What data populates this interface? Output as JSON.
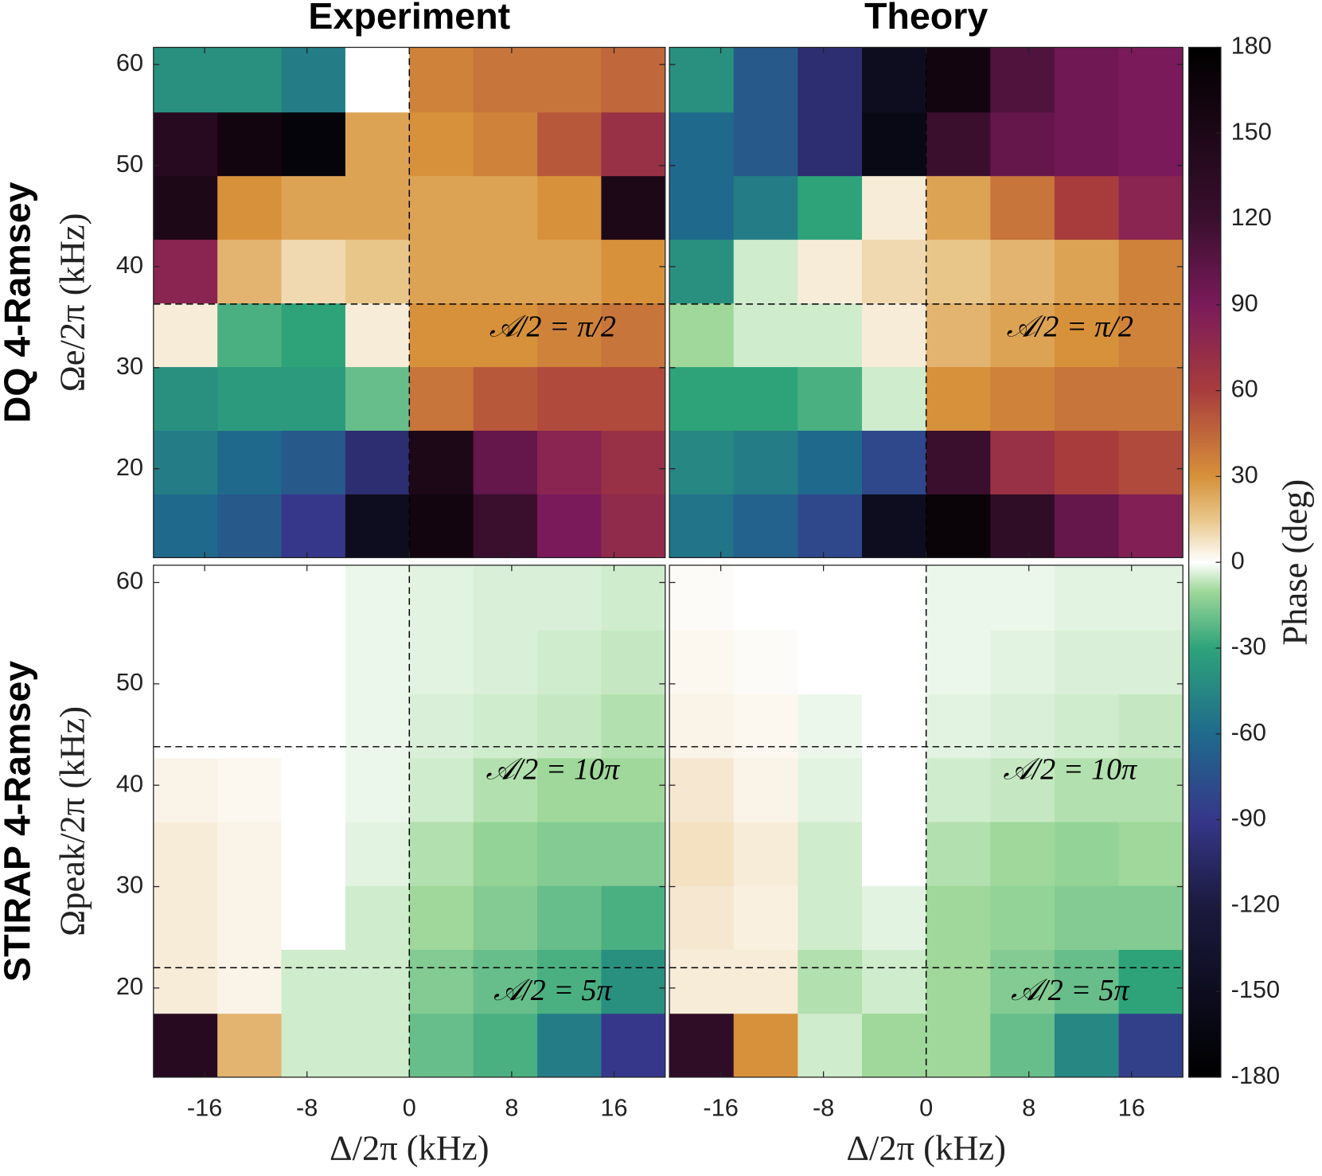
{
  "chart_data": [
    {
      "type": "heatmap",
      "title": "Experiment",
      "row_label": "DQ 4-Ramsey",
      "ylabel": "Ωe/2π (kHz)",
      "xbins": [
        -20,
        -15,
        -10,
        -5,
        0,
        5,
        10,
        15,
        20
      ],
      "ybins": [
        11.2,
        17.5,
        23.8,
        30.1,
        36.4,
        42.7,
        49,
        55.3,
        61.7
      ],
      "xlim": [
        -20,
        20
      ],
      "ylim": [
        11.2,
        61.7
      ],
      "xticks": [
        -16,
        -8,
        0,
        8,
        16
      ],
      "yticks": [
        20,
        30,
        40,
        50,
        60
      ],
      "vlines": [
        0
      ],
      "hlines": [
        {
          "value": 36.3,
          "label": "𝒜/2 = π/2"
        }
      ],
      "z": [
        [
          -60,
          -70,
          -90,
          -150,
          160,
          120,
          90,
          75
        ],
        [
          -50,
          -60,
          -70,
          -100,
          150,
          100,
          80,
          70
        ],
        [
          -40,
          -35,
          -35,
          -20,
          40,
          50,
          55,
          55
        ],
        [
          5,
          -25,
          -30,
          5,
          30,
          30,
          35,
          40
        ],
        [
          80,
          20,
          10,
          15,
          25,
          25,
          25,
          30
        ],
        [
          150,
          30,
          25,
          25,
          25,
          25,
          30,
          150
        ],
        [
          140,
          160,
          -170,
          25,
          30,
          35,
          50,
          70
        ],
        [
          -40,
          -40,
          -50,
          0,
          35,
          40,
          40,
          45
        ]
      ]
    },
    {
      "type": "heatmap",
      "title": "Theory",
      "xbins": [
        -20,
        -15,
        -10,
        -5,
        0,
        5,
        10,
        15,
        20
      ],
      "ybins": [
        11.2,
        17.5,
        23.8,
        30.1,
        36.4,
        42.7,
        49,
        55.3,
        61.7
      ],
      "xlim": [
        -20,
        20
      ],
      "ylim": [
        11.2,
        61.7
      ],
      "xticks": [
        -16,
        -8,
        0,
        8,
        16
      ],
      "yticks": [
        20,
        30,
        40,
        50,
        60
      ],
      "vlines": [
        0
      ],
      "hlines": [
        {
          "value": 36.3,
          "label": "𝒜/2 = π/2"
        }
      ],
      "z": [
        [
          -55,
          -65,
          -80,
          -150,
          170,
          130,
          100,
          85
        ],
        [
          -45,
          -50,
          -60,
          -80,
          120,
          70,
          60,
          55
        ],
        [
          -30,
          -30,
          -25,
          -5,
          30,
          35,
          40,
          40
        ],
        [
          -10,
          -5,
          -5,
          5,
          20,
          25,
          30,
          35
        ],
        [
          -40,
          -5,
          5,
          10,
          15,
          20,
          25,
          35
        ],
        [
          -60,
          -50,
          -30,
          5,
          25,
          40,
          60,
          80
        ],
        [
          -60,
          -70,
          -100,
          -160,
          120,
          100,
          95,
          90
        ],
        [
          -40,
          -70,
          -100,
          -150,
          160,
          110,
          95,
          90
        ]
      ]
    },
    {
      "type": "heatmap",
      "row_label": "STIRAP 4-Ramsey",
      "ylabel": "Ωpeak/2π (kHz)",
      "xlabel": "Δ/2π (kHz)",
      "xbins": [
        -20,
        -15,
        -10,
        -5,
        0,
        5,
        10,
        15,
        20
      ],
      "ybins": [
        11.2,
        17.5,
        23.8,
        30.1,
        36.4,
        42.7,
        49,
        55.3,
        61.7
      ],
      "xlim": [
        -20,
        20
      ],
      "ylim": [
        11.2,
        61.7
      ],
      "xticks": [
        -16,
        -8,
        0,
        8,
        16
      ],
      "yticks": [
        20,
        30,
        40,
        50,
        60
      ],
      "vlines": [
        0
      ],
      "hlines": [
        {
          "value": 43.8,
          "label": "𝒜/2 = 10π"
        },
        {
          "value": 22.0,
          "label": "𝒜/2 = 5π"
        }
      ],
      "z": [
        [
          140,
          20,
          -5,
          -5,
          -20,
          -25,
          -50,
          -90
        ],
        [
          5,
          3,
          -5,
          -5,
          -15,
          -20,
          -25,
          -40
        ],
        [
          5,
          3,
          0,
          -5,
          -10,
          -15,
          -20,
          -25
        ],
        [
          5,
          3,
          0,
          -3,
          -8,
          -12,
          -15,
          -15
        ],
        [
          3,
          2,
          0,
          -2,
          -5,
          -8,
          -10,
          -10
        ],
        [
          0,
          0,
          0,
          -2,
          -4,
          -5,
          -6,
          -8
        ],
        [
          0,
          0,
          0,
          -2,
          -3,
          -4,
          -5,
          -6
        ],
        [
          0,
          0,
          0,
          -2,
          -3,
          -4,
          -4,
          -5
        ]
      ]
    },
    {
      "type": "heatmap",
      "xlabel": "Δ/2π (kHz)",
      "xbins": [
        -20,
        -15,
        -10,
        -5,
        0,
        5,
        10,
        15,
        20
      ],
      "ybins": [
        11.2,
        17.5,
        23.8,
        30.1,
        36.4,
        42.7,
        49,
        55.3,
        61.7
      ],
      "xlim": [
        -20,
        20
      ],
      "ylim": [
        11.2,
        61.7
      ],
      "xticks": [
        -16,
        -8,
        0,
        8,
        16
      ],
      "yticks": [
        20,
        30,
        40,
        50,
        60
      ],
      "vlines": [
        0
      ],
      "hlines": [
        {
          "value": 43.8,
          "label": "𝒜/2 = 10π"
        },
        {
          "value": 22.0,
          "label": "𝒜/2 = 5π"
        }
      ],
      "z": [
        [
          130,
          30,
          -5,
          -10,
          -10,
          -20,
          -45,
          -85
        ],
        [
          5,
          5,
          -8,
          -5,
          -10,
          -15,
          -20,
          -30
        ],
        [
          6,
          4,
          -5,
          -3,
          -10,
          -12,
          -15,
          -15
        ],
        [
          8,
          5,
          -5,
          0,
          -8,
          -10,
          -12,
          -10
        ],
        [
          6,
          3,
          -3,
          0,
          -5,
          -6,
          -8,
          -8
        ],
        [
          3,
          2,
          -2,
          0,
          -3,
          -4,
          -5,
          -6
        ],
        [
          2,
          1,
          0,
          0,
          -2,
          -3,
          -4,
          -4
        ],
        [
          1,
          0,
          0,
          0,
          -2,
          -2,
          -3,
          -3
        ]
      ]
    }
  ],
  "colorbar": {
    "label": "Phase (deg)",
    "lim": [
      -180,
      180
    ],
    "ticks": [
      -180,
      -150,
      -120,
      -90,
      -60,
      -30,
      0,
      30,
      60,
      90,
      120,
      150,
      180
    ],
    "colormap": [
      {
        "value": -180,
        "color": "#000000"
      },
      {
        "value": -120,
        "color": "#1b1a3f"
      },
      {
        "value": -90,
        "color": "#36378a"
      },
      {
        "value": -60,
        "color": "#1f6a8c"
      },
      {
        "value": -30,
        "color": "#2ea37a"
      },
      {
        "value": -10,
        "color": "#9fd89a"
      },
      {
        "value": 0,
        "color": "#ffffff"
      },
      {
        "value": 15,
        "color": "#e8c68a"
      },
      {
        "value": 30,
        "color": "#d7913a"
      },
      {
        "value": 60,
        "color": "#a83c3c"
      },
      {
        "value": 90,
        "color": "#7a1a5a"
      },
      {
        "value": 120,
        "color": "#3a0f2e"
      },
      {
        "value": 180,
        "color": "#000000"
      }
    ]
  }
}
